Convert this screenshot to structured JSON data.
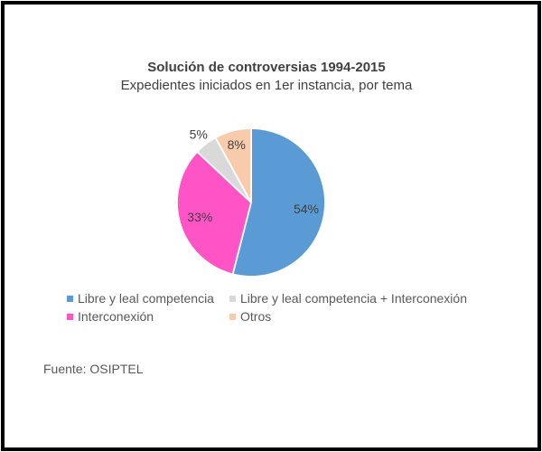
{
  "window": {
    "background_color": "#ffffff",
    "frame_color": "#000000"
  },
  "chart_data": {
    "type": "pie",
    "title": "Solución de controversias 1994-2015",
    "subtitle": "Expedientes iniciados en 1er instancia, por tema",
    "slices": [
      {
        "label": "Libre y leal competencia",
        "value": 54,
        "display": "54%",
        "color": "#5B9BD5",
        "label_placement": "inside"
      },
      {
        "label": "Interconexión",
        "value": 33,
        "display": "33%",
        "color": "#FF54C6",
        "label_placement": "inside"
      },
      {
        "label": "Libre y leal competencia + Interconexión",
        "value": 5,
        "display": "5%",
        "color": "#D9D9D9",
        "label_placement": "outside"
      },
      {
        "label": "Otros",
        "value": 8,
        "display": "8%",
        "color": "#F8CBAD",
        "label_placement": "inside"
      }
    ],
    "legend_order_indices": [
      0,
      2,
      1,
      3
    ],
    "legend_position": "bottom",
    "start_angle_deg": 0,
    "direction": "clockwise",
    "slice_border_color": "#ffffff",
    "value_label_color": "#404040",
    "legend_text_color": "#595959"
  },
  "source": {
    "text": "Fuente: OSIPTEL"
  }
}
